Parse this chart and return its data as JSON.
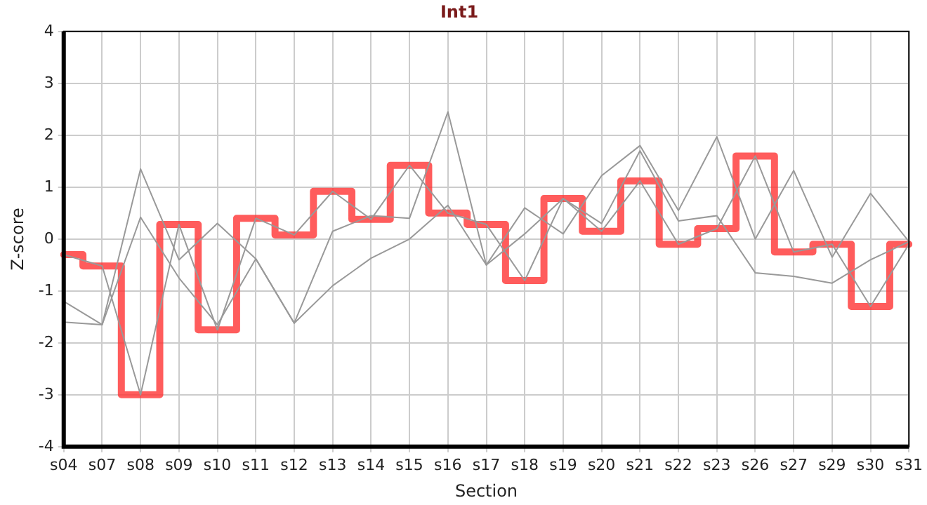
{
  "chart_data": {
    "type": "line",
    "title": "Int1",
    "xlabel": "Section",
    "ylabel": "Z-score",
    "categories": [
      "s04",
      "s07",
      "s08",
      "s09",
      "s10",
      "s11",
      "s12",
      "s13",
      "s14",
      "s15",
      "s16",
      "s17",
      "s18",
      "s19",
      "s20",
      "s21",
      "s22",
      "s23",
      "s26",
      "s27",
      "s29",
      "s30",
      "s31"
    ],
    "series": [
      {
        "type": "line",
        "color": "#999999",
        "values": [
          -1.2,
          -1.65,
          1.35,
          -0.4,
          0.3,
          -0.38,
          -1.62,
          0.15,
          0.45,
          0.4,
          2.45,
          -0.5,
          0.6,
          0.1,
          1.22,
          1.8,
          0.55,
          1.97,
          0.0,
          1.32,
          -0.35,
          0.88,
          -0.05
        ]
      },
      {
        "type": "line",
        "color": "#999999",
        "values": [
          -1.6,
          -1.65,
          0.42,
          -0.75,
          -1.65,
          -0.38,
          -1.62,
          -0.9,
          -0.37,
          0.0,
          0.65,
          -0.5,
          0.1,
          0.78,
          0.3,
          1.7,
          0.35,
          0.45,
          -0.65,
          -0.72,
          -0.85,
          -0.4,
          -0.05
        ]
      },
      {
        "type": "line",
        "color": "#999999",
        "values": [
          -0.3,
          -0.52,
          -3.0,
          0.28,
          -1.75,
          0.4,
          0.08,
          0.92,
          0.38,
          1.42,
          0.5,
          0.28,
          -0.8,
          0.78,
          0.15,
          1.12,
          -0.1,
          0.2,
          1.6,
          -0.25,
          -0.1,
          -1.3,
          -0.1
        ]
      },
      {
        "type": "step",
        "color": "#ff3333",
        "values": [
          -0.3,
          -0.52,
          -3.0,
          0.28,
          -1.75,
          0.4,
          0.08,
          0.92,
          0.38,
          1.42,
          0.5,
          0.28,
          -0.8,
          0.78,
          0.15,
          1.12,
          -0.1,
          0.2,
          1.6,
          -0.25,
          -0.1,
          -1.3,
          -0.1
        ]
      }
    ],
    "ylim": [
      -4,
      4
    ],
    "yticks": [
      -4,
      -3,
      -2,
      -1,
      0,
      1,
      2,
      3,
      4
    ],
    "grid": true,
    "legend": false,
    "marker": "none"
  }
}
